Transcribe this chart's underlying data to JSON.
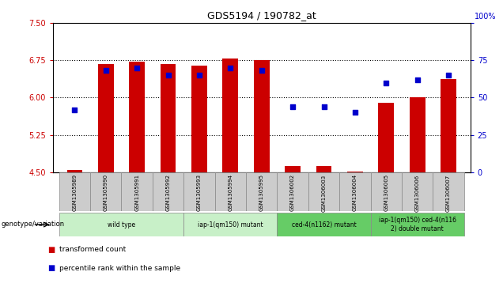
{
  "title": "GDS5194 / 190782_at",
  "samples": [
    "GSM1305989",
    "GSM1305990",
    "GSM1305991",
    "GSM1305992",
    "GSM1305993",
    "GSM1305994",
    "GSM1305995",
    "GSM1306002",
    "GSM1306003",
    "GSM1306004",
    "GSM1306005",
    "GSM1306006",
    "GSM1306007"
  ],
  "bar_values": [
    4.55,
    6.68,
    6.72,
    6.68,
    6.65,
    6.79,
    6.75,
    4.63,
    4.63,
    4.52,
    5.9,
    6.0,
    6.38
  ],
  "percentile_values": [
    42,
    68,
    70,
    65,
    65,
    70,
    68,
    44,
    44,
    40,
    60,
    62,
    65
  ],
  "bar_bottom": 4.5,
  "ylim_left": [
    4.5,
    7.5
  ],
  "ylim_right": [
    0,
    100
  ],
  "yticks_left": [
    4.5,
    5.25,
    6.0,
    6.75,
    7.5
  ],
  "yticks_right": [
    0,
    25,
    50,
    75,
    100
  ],
  "grid_values": [
    5.25,
    6.0,
    6.75
  ],
  "bar_color": "#cc0000",
  "percentile_color": "#0000cc",
  "genotype_groups": [
    {
      "label": "wild type",
      "samples": [
        0,
        1,
        2,
        3
      ],
      "color": "#c8f0c8"
    },
    {
      "label": "iap-1(qm150) mutant",
      "samples": [
        4,
        5,
        6
      ],
      "color": "#c8f0c8"
    },
    {
      "label": "ced-4(n1162) mutant",
      "samples": [
        7,
        8,
        9
      ],
      "color": "#66cc66"
    },
    {
      "label": "iap-1(qm150) ced-4(n116\n2) double mutant",
      "samples": [
        10,
        11,
        12
      ],
      "color": "#66cc66"
    }
  ],
  "genotype_label": "genotype/variation",
  "legend_bar_label": "transformed count",
  "legend_pct_label": "percentile rank within the sample",
  "bg_color": "#ffffff",
  "tick_color_left": "#cc0000",
  "tick_color_right": "#0000cc",
  "bar_width": 0.5,
  "sample_box_color": "#cccccc",
  "right_axis_label": "100%"
}
